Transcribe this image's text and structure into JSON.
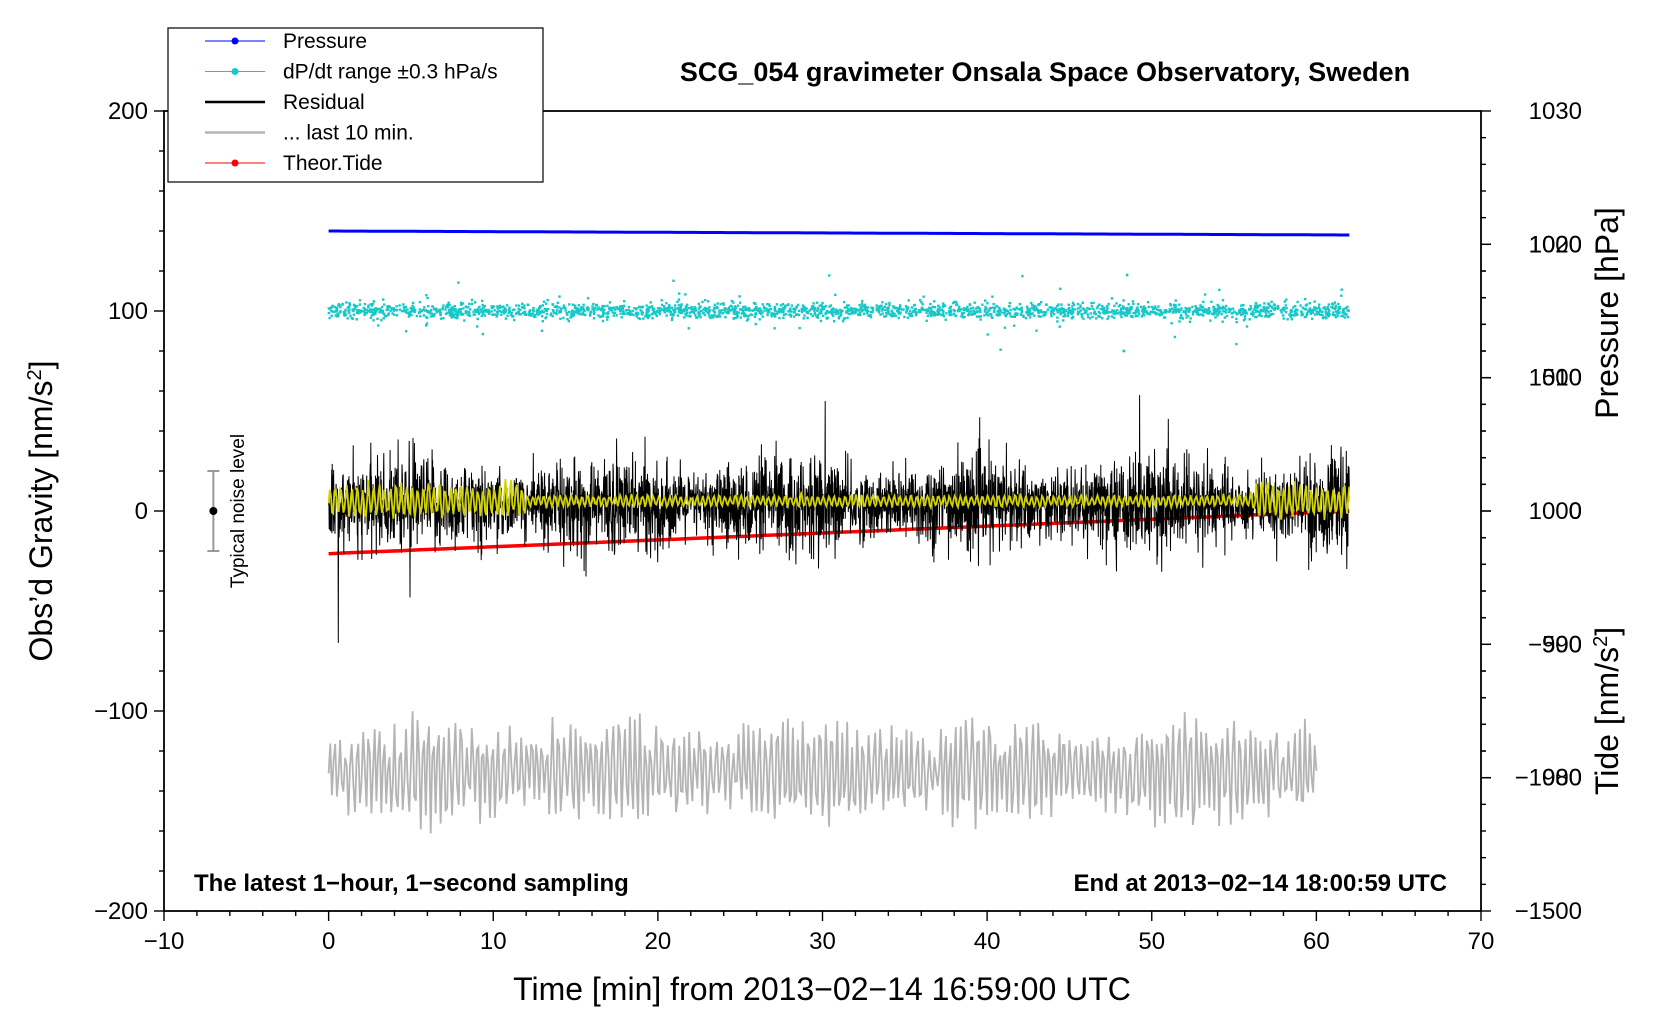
{
  "colors": {
    "pressure": "#0000ff",
    "dpdt": "#17c8c8",
    "residual": "#000000",
    "last10": "#b4b4b4",
    "tide": "#ff0000",
    "smooth": "#d2d200"
  },
  "chart_data": {
    "type": "line",
    "title": "SCG_054 gravimeter Onsala Space Observatory, Sweden",
    "xlabel": "Time [min] from 2013−02−14 16:59:00 UTC",
    "ylabel_left_main": "Obs’d Gravity [nm/s",
    "ylabel_left_sup": "2",
    "ylabel_left_close": "]",
    "ylabel_right_pressure": "Pressure [hPa]",
    "ylabel_right_tide_main": "Tide [nm/s",
    "ylabel_right_tide_sup": "2",
    "ylabel_right_tide_close": "]",
    "xlim": [
      -10,
      70
    ],
    "ylim_left": [
      -200,
      200
    ],
    "ylim_pressure": [
      970,
      1030
    ],
    "ylim_tide": [
      -1500,
      1500
    ],
    "x_ticks": [
      {
        "v": -10,
        "label": "−10"
      },
      {
        "v": 0,
        "label": "0"
      },
      {
        "v": 10,
        "label": "10"
      },
      {
        "v": 20,
        "label": "20"
      },
      {
        "v": 30,
        "label": "30"
      },
      {
        "v": 40,
        "label": "40"
      },
      {
        "v": 50,
        "label": "50"
      },
      {
        "v": 60,
        "label": "60"
      },
      {
        "v": 70,
        "label": "70"
      }
    ],
    "y_ticks_left": [
      {
        "v": 200,
        "label": "200"
      },
      {
        "v": 100,
        "label": "100"
      },
      {
        "v": 0,
        "label": "0"
      },
      {
        "v": -100,
        "label": "−100"
      },
      {
        "v": -200,
        "label": "−200"
      }
    ],
    "y_ticks_pressure": [
      {
        "v": 1030,
        "label": "1030"
      },
      {
        "v": 1020,
        "label": "1020"
      },
      {
        "v": 1010,
        "label": "1010"
      },
      {
        "v": 1000,
        "label": "1000"
      },
      {
        "v": 990,
        "label": "990"
      },
      {
        "v": 980,
        "label": "980"
      }
    ],
    "y_ticks_tide": [
      {
        "v": 1000,
        "label": "1000"
      },
      {
        "v": 500,
        "label": "500"
      },
      {
        "v": 0,
        "label": "0"
      },
      {
        "v": -500,
        "label": "−500"
      },
      {
        "v": -1000,
        "label": "−1000"
      },
      {
        "v": -1500,
        "label": "−1500"
      }
    ],
    "legend": [
      {
        "label": "Pressure",
        "style": "line-dot",
        "color_key": "pressure"
      },
      {
        "label": "dP/dt range ±0.3 hPa/s",
        "style": "line-dot",
        "color_key": "dpdt"
      },
      {
        "label": "Residual",
        "style": "line",
        "color_key": "residual"
      },
      {
        "label": "... last 10 min.",
        "style": "line",
        "color_key": "last10"
      },
      {
        "label": "Theor.Tide",
        "style": "line-dot",
        "color_key": "tide"
      }
    ],
    "legend_position": "top-left",
    "note_left": "The latest 1−hour, 1−second sampling",
    "note_right": "End at 2013−02−14 18:00:59 UTC",
    "noise_label": "Typical noise level",
    "noise_bar": {
      "x": -7,
      "center": 0,
      "half_range": 20
    },
    "series": [
      {
        "name": "Pressure",
        "axis": "pressure",
        "x_range": [
          0,
          62
        ],
        "start": 1021.0,
        "end": 1020.7,
        "note": "nearly flat"
      },
      {
        "name": "dP/dt range ±0.3 hPa/s",
        "axis": "left",
        "x_range": [
          0,
          62
        ],
        "center": 100,
        "spread": 4,
        "outlier_max": 118,
        "outlier_min": 80
      },
      {
        "name": "Residual",
        "axis": "left",
        "x_range": [
          0,
          62
        ],
        "center": 3,
        "typical_amplitude": 30,
        "max": 58,
        "min": -66
      },
      {
        "name": "Smoothed residual",
        "axis": "left",
        "x_range": [
          0,
          62
        ],
        "center": 5,
        "amplitude": 7
      },
      {
        "name": "Theor.Tide",
        "axis": "tide",
        "x_range": [
          0,
          62
        ],
        "start": -160,
        "end": 0
      },
      {
        "name": "... last 10 min.",
        "axis": "left",
        "x_range": [
          0,
          60
        ],
        "center": -130,
        "typical_amplitude": 18,
        "max": -83,
        "min": -168
      }
    ]
  }
}
